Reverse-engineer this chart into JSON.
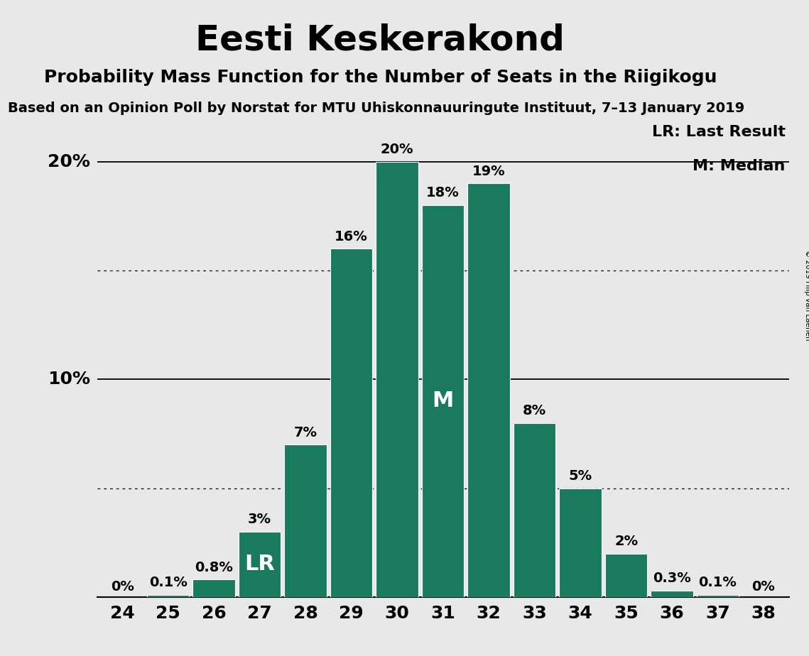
{
  "title": "Eesti Keskerakond",
  "subtitle": "Probability Mass Function for the Number of Seats in the Riigikogu",
  "subtitle2": "Based on an Opinion Poll by Norstat for MTU Uhiskonnauuringute Instituut, 7–13 January 2019",
  "copyright": "© 2019 Filip van Laenen",
  "seats": [
    24,
    25,
    26,
    27,
    28,
    29,
    30,
    31,
    32,
    33,
    34,
    35,
    36,
    37,
    38
  ],
  "probabilities": [
    0.0,
    0.1,
    0.8,
    3.0,
    7.0,
    16.0,
    20.0,
    18.0,
    19.0,
    8.0,
    5.0,
    2.0,
    0.3,
    0.1,
    0.0
  ],
  "labels": [
    "0%",
    "0.1%",
    "0.8%",
    "3%",
    "7%",
    "16%",
    "20%",
    "18%",
    "19%",
    "8%",
    "5%",
    "2%",
    "0.3%",
    "0.1%",
    "0%"
  ],
  "bar_color": "#1a7a5e",
  "background_color": "#e8e8e8",
  "lr_seat": 27,
  "median_seat": 31,
  "lr_label": "LR",
  "median_label": "M",
  "legend_lr": "LR: Last Result",
  "legend_m": "M: Median",
  "ylim": [
    0,
    22
  ],
  "solid_yticks": [
    10,
    20
  ],
  "dotted_yticks": [
    5,
    15
  ],
  "title_fontsize": 36,
  "subtitle_fontsize": 18,
  "subtitle2_fontsize": 14,
  "bar_label_fontsize": 14,
  "axis_label_fontsize": 18,
  "legend_fontsize": 16,
  "inbar_fontsize": 22,
  "yaxis_labels": [
    [
      10,
      "10%"
    ],
    [
      20,
      "20%"
    ]
  ]
}
